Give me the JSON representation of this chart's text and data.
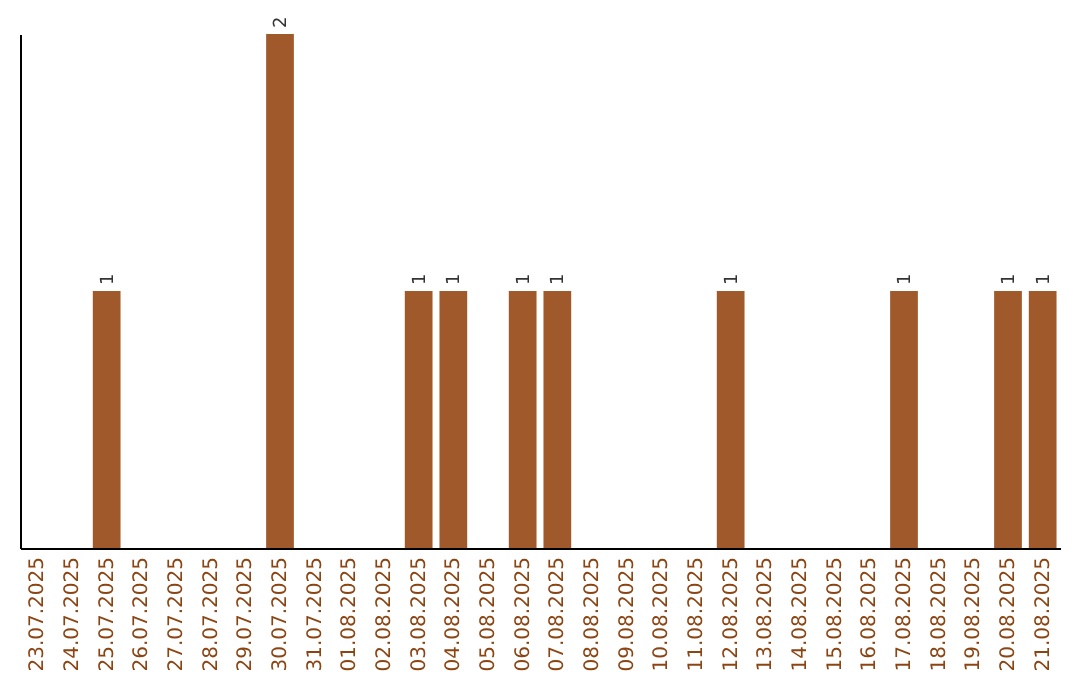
{
  "chart_data": {
    "type": "bar",
    "categories": [
      "23.07.2025",
      "24.07.2025",
      "25.07.2025",
      "26.07.2025",
      "27.07.2025",
      "28.07.2025",
      "29.07.2025",
      "30.07.2025",
      "31.07.2025",
      "01.08.2025",
      "02.08.2025",
      "03.08.2025",
      "04.08.2025",
      "05.08.2025",
      "06.08.2025",
      "07.08.2025",
      "08.08.2025",
      "09.08.2025",
      "10.08.2025",
      "11.08.2025",
      "12.08.2025",
      "13.08.2025",
      "14.08.2025",
      "15.08.2025",
      "16.08.2025",
      "17.08.2025",
      "18.08.2025",
      "19.08.2025",
      "20.08.2025",
      "21.08.2025"
    ],
    "values": [
      0,
      0,
      1,
      0,
      0,
      0,
      0,
      2,
      0,
      0,
      0,
      1,
      1,
      0,
      1,
      1,
      0,
      0,
      0,
      0,
      1,
      0,
      0,
      0,
      0,
      1,
      0,
      0,
      1,
      1
    ],
    "color": "#a0592a",
    "value_labels": [
      null,
      null,
      "1",
      null,
      null,
      null,
      null,
      "2",
      null,
      null,
      null,
      "1",
      "1",
      null,
      "1",
      "1",
      null,
      null,
      null,
      null,
      "1",
      null,
      null,
      null,
      null,
      "1",
      null,
      null,
      "1",
      "1"
    ],
    "grid": false
  }
}
